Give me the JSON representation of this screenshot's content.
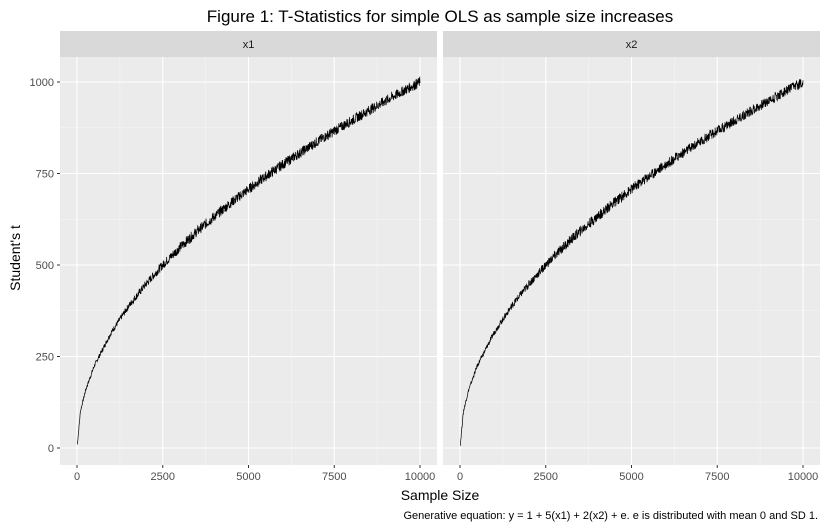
{
  "chart_data": {
    "type": "line",
    "title": "Figure 1: T-Statistics for simple OLS as sample size increases",
    "xlabel": "Sample Size",
    "ylabel": "Student's t",
    "caption": "Generative equation: y = 1 + 5(x1) + 2(x2) + e. e is distributed with mean 0 and SD 1.",
    "xlim": [
      0,
      10000
    ],
    "ylim": [
      0,
      1000
    ],
    "x_ticks": [
      0,
      2500,
      5000,
      7500,
      10000
    ],
    "y_ticks": [
      0,
      250,
      500,
      750,
      1000
    ],
    "x_tick_labels": [
      "0",
      "2500",
      "5000",
      "7500",
      "10000"
    ],
    "y_tick_labels": [
      "0",
      "250",
      "500",
      "750",
      "1000"
    ],
    "grid": true,
    "facets": [
      {
        "label": "x1",
        "series": [
          {
            "x": [
              10,
              100,
              250,
              500,
              1000,
              1500,
              2000,
              2500,
              3000,
              3500,
              4000,
              4500,
              5000,
              5500,
              6000,
              6500,
              7000,
              7500,
              8000,
              8500,
              9000,
              9500,
              10000
            ],
            "values": [
              10,
              100,
              158,
              224,
              316,
              387,
              447,
              500,
              548,
              592,
              632,
              671,
              707,
              742,
              775,
              806,
              837,
              866,
              894,
              922,
              949,
              975,
              1000
            ]
          }
        ]
      },
      {
        "label": "x2",
        "series": [
          {
            "x": [
              10,
              100,
              250,
              500,
              1000,
              1500,
              2000,
              2500,
              3000,
              3500,
              4000,
              4500,
              5000,
              5500,
              6000,
              6500,
              7000,
              7500,
              8000,
              8500,
              9000,
              9500,
              10000
            ],
            "values": [
              10,
              100,
              158,
              224,
              316,
              387,
              447,
              500,
              548,
              592,
              632,
              671,
              707,
              742,
              775,
              806,
              837,
              866,
              894,
              922,
              949,
              975,
              1000
            ]
          }
        ]
      }
    ]
  }
}
